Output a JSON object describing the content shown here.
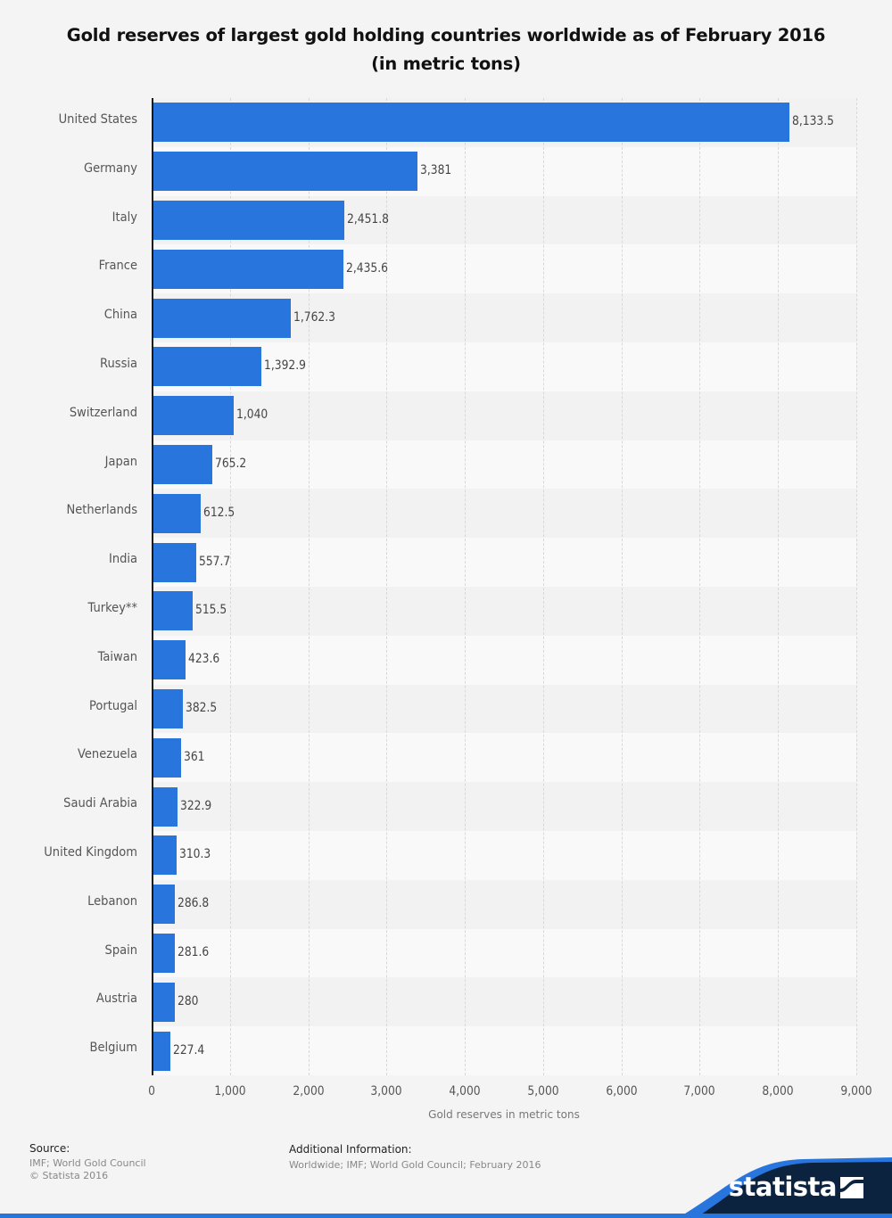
{
  "title": "Gold reserves of largest gold holding countries worldwide as of February 2016 (in metric tons)",
  "colors": {
    "bar": "#2876dd",
    "band_a": "#f2f2f2",
    "band_b": "#f9f9f9",
    "logo_dark": "#0c2340",
    "logo_wave": "#2876dd"
  },
  "footer": {
    "source_heading": "Source:",
    "source_line1": "IMF; World Gold Council",
    "source_line2": "© Statista 2016",
    "info_heading": "Additional Information:",
    "info_text": "Worldwide; IMF; World Gold Council; February 2016",
    "brand": "statista"
  },
  "chart_data": {
    "type": "bar",
    "orientation": "horizontal",
    "title": "Gold reserves of largest gold holding countries worldwide as of February 2016 (in metric tons)",
    "xlabel": "Gold reserves in metric tons",
    "ylabel": "",
    "xlim": [
      0,
      9000
    ],
    "xticks": [
      "0",
      "1,000",
      "2,000",
      "3,000",
      "4,000",
      "5,000",
      "6,000",
      "7,000",
      "8,000",
      "9,000"
    ],
    "grid": true,
    "legend": null,
    "categories": [
      "United States",
      "Germany",
      "Italy",
      "France",
      "China",
      "Russia",
      "Switzerland",
      "Japan",
      "Netherlands",
      "India",
      "Turkey**",
      "Taiwan",
      "Portugal",
      "Venezuela",
      "Saudi Arabia",
      "United Kingdom",
      "Lebanon",
      "Spain",
      "Austria",
      "Belgium"
    ],
    "values": [
      8133.5,
      3381,
      2451.8,
      2435.6,
      1762.3,
      1392.9,
      1040,
      765.2,
      612.5,
      557.7,
      515.5,
      423.6,
      382.5,
      361,
      322.9,
      310.3,
      286.8,
      281.6,
      280,
      227.4
    ],
    "value_labels": [
      "8,133.5",
      "3,381",
      "2,451.8",
      "2,435.6",
      "1,762.3",
      "1,392.9",
      "1,040",
      "765.2",
      "612.5",
      "557.7",
      "515.5",
      "423.6",
      "382.5",
      "361",
      "322.9",
      "310.3",
      "286.8",
      "281.6",
      "280",
      "227.4"
    ]
  }
}
